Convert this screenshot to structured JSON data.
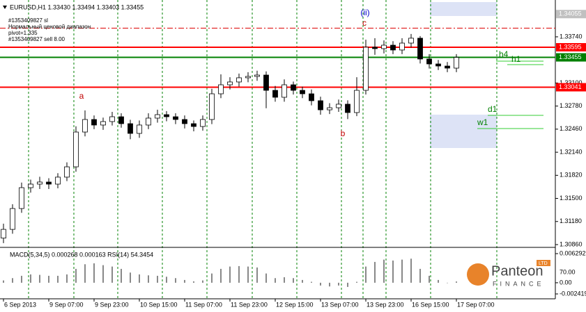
{
  "chart_data": {
    "type": "candlestick",
    "title": "EURUSD,H1  1.33430 1.33494 1.33403 1.33455",
    "order_labels": [
      "#1353409827 sl",
      "Нормальный ценовой диапазон",
      "pivot=1.335",
      "#1353409827 sell 8.00"
    ],
    "sl_level": 1.3386,
    "annotations": [
      "a",
      "b",
      "c",
      "(ii)",
      "h4",
      "h1",
      "d1",
      "w1"
    ],
    "categories": [
      "6 Sep 2013",
      null,
      null,
      null,
      null,
      "9 Sep 07:00",
      null,
      null,
      null,
      null,
      "9 Sep 23:00",
      null,
      null,
      null,
      null,
      "10 Sep 15:00",
      null,
      null,
      null,
      null,
      "11 Sep 07:00",
      null,
      null,
      null,
      null,
      "11 Sep 23:00",
      null,
      null,
      null,
      null,
      "12 Sep 15:00",
      null,
      null,
      null,
      null,
      "13 Sep 07:00",
      null,
      null,
      null,
      null,
      "13 Sep 23:00",
      null,
      null,
      null,
      null,
      "16 Sep 15:00",
      null,
      null,
      null,
      null,
      "17 Sep 07:00"
    ],
    "open": [
      1.3095,
      1.31071,
      1.3136,
      1.31649,
      1.31698,
      1.31727,
      1.31698,
      1.31795,
      1.31938,
      1.3242,
      1.32594,
      1.32517,
      1.32565,
      1.32632,
      1.32536,
      1.32401,
      1.32517,
      1.32613,
      1.32661,
      1.32632,
      1.32594,
      1.32536,
      1.32497,
      1.32594,
      1.3295,
      1.33075,
      1.33114,
      1.33172,
      1.33191,
      1.3321,
      1.32998,
      1.32902,
      1.33075,
      1.32998,
      1.3295,
      1.32854,
      1.32728,
      1.32757,
      1.32806,
      1.3269,
      1.32998,
      1.33596,
      1.33576,
      1.33624,
      1.33557,
      1.33653,
      1.33721,
      1.33432,
      1.33364,
      1.33335,
      1.33306
    ],
    "high": [
      1.3115,
      1.3142,
      1.3172,
      1.3176,
      1.318,
      1.3178,
      1.3185,
      1.32,
      1.325,
      1.3272,
      1.3265,
      1.3262,
      1.327,
      1.3268,
      1.3259,
      1.3258,
      1.3268,
      1.3273,
      1.3271,
      1.3268,
      1.3265,
      1.3258,
      1.3265,
      1.3302,
      1.3322,
      1.3318,
      1.3323,
      1.3325,
      1.3327,
      1.3326,
      1.3306,
      1.3315,
      1.3312,
      1.3305,
      1.3301,
      1.3291,
      1.3282,
      1.3287,
      1.3286,
      1.3318,
      1.337,
      1.3372,
      1.3369,
      1.3368,
      1.3372,
      1.3378,
      1.3375,
      1.335,
      1.3342,
      1.3339,
      1.335
    ],
    "low": [
      1.3088,
      1.3101,
      1.313,
      1.3158,
      1.3163,
      1.3163,
      1.3164,
      1.3174,
      1.3187,
      1.3236,
      1.3246,
      1.3245,
      1.3251,
      1.3248,
      1.3232,
      1.3234,
      1.3246,
      1.3255,
      1.3257,
      1.3253,
      1.3247,
      1.3243,
      1.3244,
      1.3253,
      1.3289,
      1.3301,
      1.3305,
      1.3311,
      1.3313,
      1.3275,
      1.3284,
      1.3284,
      1.3294,
      1.3289,
      1.3279,
      1.3266,
      1.3267,
      1.327,
      1.326,
      1.3264,
      1.3294,
      1.3349,
      1.3351,
      1.335,
      1.335,
      1.3359,
      1.3337,
      1.333,
      1.3328,
      1.3325,
      1.3325
    ],
    "close": [
      1.31071,
      1.3136,
      1.31649,
      1.31698,
      1.31727,
      1.31698,
      1.31795,
      1.31938,
      1.3242,
      1.32594,
      1.32517,
      1.32565,
      1.32632,
      1.32536,
      1.32401,
      1.32517,
      1.32613,
      1.32661,
      1.32632,
      1.32594,
      1.32536,
      1.32497,
      1.32594,
      1.3295,
      1.33075,
      1.33114,
      1.33172,
      1.33191,
      1.3321,
      1.32998,
      1.32902,
      1.33075,
      1.32998,
      1.3295,
      1.32854,
      1.32728,
      1.32757,
      1.32806,
      1.3269,
      1.32998,
      1.33596,
      1.33576,
      1.33624,
      1.33557,
      1.33653,
      1.33721,
      1.33432,
      1.33364,
      1.33335,
      1.33306,
      1.33455
    ],
    "ylim": [
      1.30831,
      1.34202
    ],
    "yticks": [
      {
        "value": 1.3374,
        "label": "1.33740"
      },
      {
        "value": 1.331,
        "label": "1.33100"
      },
      {
        "value": 1.3278,
        "label": "1.32780"
      },
      {
        "value": 1.3246,
        "label": "1.32460"
      },
      {
        "value": 1.3214,
        "label": "1.32140"
      },
      {
        "value": 1.3182,
        "label": "1.31820"
      },
      {
        "value": 1.315,
        "label": "1.31500"
      },
      {
        "value": 1.3118,
        "label": "1.31180"
      },
      {
        "value": 1.3086,
        "label": "1.30860"
      }
    ],
    "levels": [
      {
        "value": 1.34055,
        "label": "1.34055",
        "color": "#c0c0c0"
      },
      {
        "value": 1.33595,
        "label": "1.33595",
        "color": "#ff0000"
      },
      {
        "value": 1.33455,
        "label": "1.33455",
        "color": "#008000"
      },
      {
        "value": 1.33041,
        "label": "1.33041",
        "color": "#ff0000"
      }
    ],
    "indicator": {
      "title": "MACD(5,34,5) 0.000268 0.000163  RSI(14) 54.3454",
      "values": [
        0.0005,
        0.001,
        0.0015,
        0.0018,
        0.0017,
        0.0015,
        0.0015,
        0.0018,
        0.003,
        0.004,
        0.0042,
        0.0038,
        0.0035,
        0.003,
        0.0022,
        0.0018,
        0.0016,
        0.0015,
        0.0013,
        0.001,
        0.0006,
        0.0003,
        0.0005,
        0.002,
        0.003,
        0.0035,
        0.0036,
        0.0035,
        0.0033,
        0.002,
        0.001,
        0.0012,
        0.001,
        0.0006,
        0.0002,
        -0.0006,
        -0.0008,
        -0.0006,
        -0.0009,
        0.0002,
        0.0035,
        0.0045,
        0.005,
        0.0048,
        0.005,
        0.0052,
        0.003,
        0.0015,
        0.0006,
        0,
        0.000268
      ],
      "ylim": [
        -0.00347,
        0.007494
      ],
      "yticks": [
        {
          "value": 0.006292,
          "label": "0.006292"
        },
        {
          "value": 0,
          "label": "0.00"
        },
        {
          "value": -0.002419,
          "label": "-0.002419"
        }
      ],
      "extra_labels": [
        "70.00"
      ]
    },
    "logo": [
      "Panteon",
      "FINANCE",
      "LTD"
    ]
  }
}
